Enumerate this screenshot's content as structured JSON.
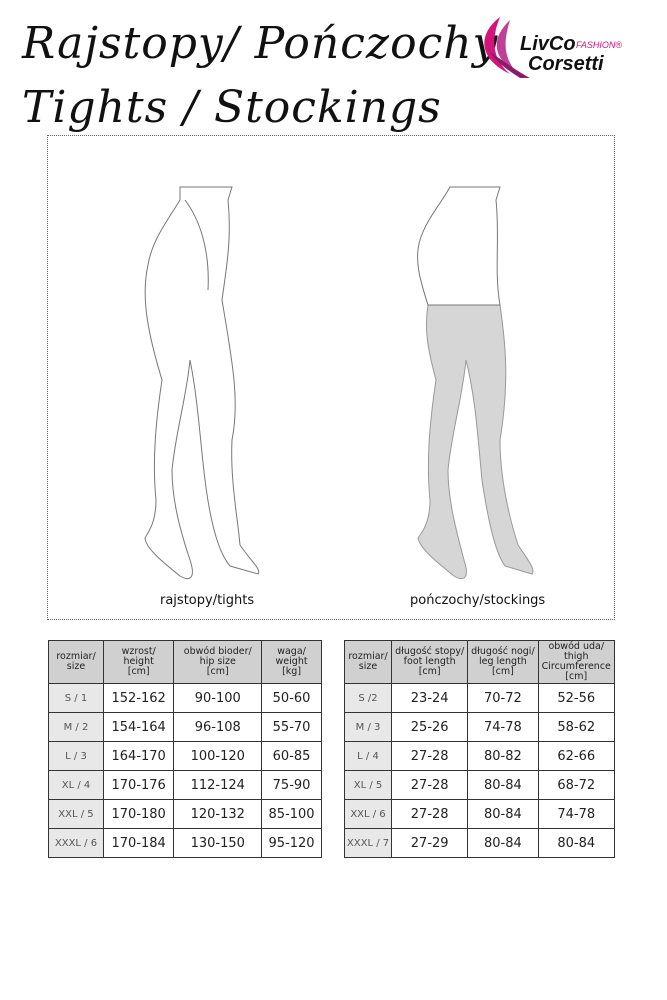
{
  "title_line1": "Rajstopy/ Pończochy",
  "title_line2": "Tights / Stockings",
  "logo": {
    "text1": "LivCo",
    "text2": "FASHION®",
    "text3": "Corsetti",
    "color": "#d4147a"
  },
  "figures": {
    "tights_caption": "rajstopy/tights",
    "stockings_caption": "pończochy/stockings"
  },
  "tights_table": {
    "headers": [
      [
        "rozmiar/",
        "size"
      ],
      [
        "wzrost/",
        "height",
        "[cm]"
      ],
      [
        "obwód bioder/",
        "hip size",
        "[cm]"
      ],
      [
        "waga/",
        "weight",
        "[kg]"
      ]
    ],
    "rows": [
      [
        "S / 1",
        "152-162",
        "90-100",
        "50-60"
      ],
      [
        "M / 2",
        "154-164",
        "96-108",
        "55-70"
      ],
      [
        "L / 3",
        "164-170",
        "100-120",
        "60-85"
      ],
      [
        "XL / 4",
        "170-176",
        "112-124",
        "75-90"
      ],
      [
        "XXL / 5",
        "170-180",
        "120-132",
        "85-100"
      ],
      [
        "XXXL / 6",
        "170-184",
        "130-150",
        "95-120"
      ]
    ]
  },
  "stockings_table": {
    "headers": [
      [
        "rozmiar/",
        "size"
      ],
      [
        "długość stopy/",
        "foot length",
        "[cm]"
      ],
      [
        "długość nogi/",
        "leg length",
        "[cm]"
      ],
      [
        "obwód uda/",
        "thigh",
        "Circumference",
        "[cm]"
      ]
    ],
    "rows": [
      [
        "S /2",
        "23-24",
        "70-72",
        "52-56"
      ],
      [
        "M / 3",
        "25-26",
        "74-78",
        "58-62"
      ],
      [
        "L / 4",
        "27-28",
        "80-82",
        "62-66"
      ],
      [
        "XL / 5",
        "27-28",
        "80-84",
        "68-72"
      ],
      [
        "XXL / 6",
        "27-28",
        "80-84",
        "74-78"
      ],
      [
        "XXXL / 7",
        "27-29",
        "80-84",
        "80-84"
      ]
    ]
  }
}
